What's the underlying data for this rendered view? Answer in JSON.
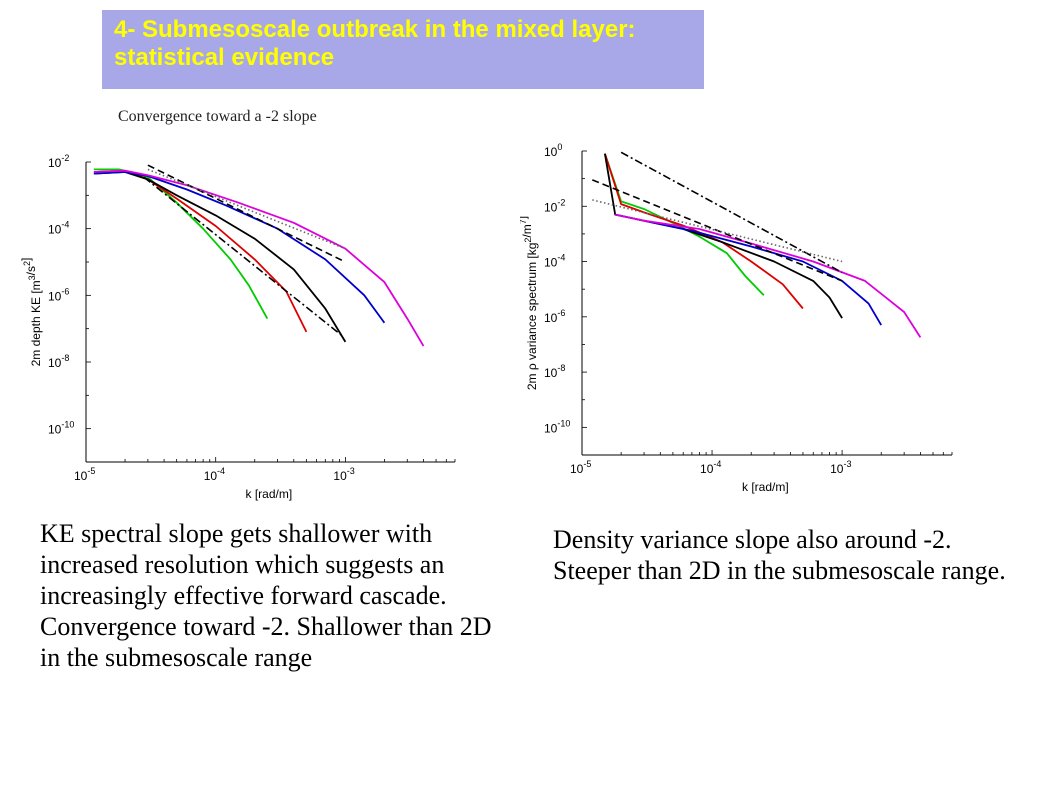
{
  "title": {
    "text": "4- Submesoscale outbreak in the mixed layer: statistical evidence",
    "background": "#a8a8e8",
    "color": "#ffff00"
  },
  "subtitle": "Convergence toward a -2 slope",
  "captions": {
    "left": "KE spectral slope gets shallower with increased resolution which suggests an increasingly effective forward cascade. Convergence toward -2. Shallower than 2D in the submesoscale range",
    "right": "Density variance slope also around -2. Steeper than 2D in the submesoscale range."
  },
  "chart_data": [
    {
      "type": "line",
      "xscale": "log",
      "yscale": "log",
      "xlabel": "k [rad/m]",
      "ylabel": "2m depth KE [m^3/s^2]",
      "xlim": [
        1e-05,
        0.007
      ],
      "ylim": [
        1e-11,
        0.01
      ],
      "x_ticks": [
        {
          "base": "10",
          "exp": "-5"
        },
        {
          "base": "10",
          "exp": "-4"
        },
        {
          "base": "10",
          "exp": "-3"
        }
      ],
      "y_ticks": [
        {
          "base": "10",
          "exp": "-2",
          "value": -2
        },
        {
          "base": "10",
          "exp": "-4",
          "value": -4
        },
        {
          "base": "10",
          "exp": "-6",
          "value": -6
        },
        {
          "base": "10",
          "exp": "-8",
          "value": -8
        },
        {
          "base": "10",
          "exp": "-10",
          "value": -10
        }
      ],
      "series": [
        {
          "color": "#00cc00",
          "style": "solid",
          "points": [
            [
              1.15e-05,
              0.006
            ],
            [
              1.8e-05,
              0.006
            ],
            [
              3e-05,
              0.0035
            ],
            [
              5e-05,
              0.0006
            ],
            [
              8e-05,
              0.0001
            ],
            [
              0.00013,
              1.2e-05
            ],
            [
              0.00018,
              2e-06
            ],
            [
              0.00025,
              2e-07
            ]
          ]
        },
        {
          "color": "#dd0000",
          "style": "solid",
          "points": [
            [
              1.15e-05,
              0.005
            ],
            [
              2e-05,
              0.0055
            ],
            [
              3e-05,
              0.003
            ],
            [
              5e-05,
              0.0008
            ],
            [
              0.0001,
              0.00012
            ],
            [
              0.0002,
              1.2e-05
            ],
            [
              0.00035,
              1.3e-06
            ],
            [
              0.0005,
              8e-08
            ]
          ]
        },
        {
          "color": "#000000",
          "style": "solid",
          "points": [
            [
              1.15e-05,
              0.0045
            ],
            [
              2e-05,
              0.005
            ],
            [
              3e-05,
              0.003
            ],
            [
              5e-05,
              0.001
            ],
            [
              0.0001,
              0.00025
            ],
            [
              0.0002,
              5e-05
            ],
            [
              0.0004,
              6e-06
            ],
            [
              0.0007,
              4e-07
            ],
            [
              0.001,
              4e-08
            ]
          ]
        },
        {
          "color": "#0000cc",
          "style": "solid",
          "points": [
            [
              1.15e-05,
              0.0045
            ],
            [
              2e-05,
              0.005
            ],
            [
              3e-05,
              0.0038
            ],
            [
              6e-05,
              0.0015
            ],
            [
              0.00012,
              0.0005
            ],
            [
              0.0003,
              0.0001
            ],
            [
              0.0007,
              1.2e-05
            ],
            [
              0.0014,
              1e-06
            ],
            [
              0.002,
              1.5e-07
            ]
          ]
        },
        {
          "color": "#dd00dd",
          "style": "solid",
          "points": [
            [
              1.15e-05,
              0.005
            ],
            [
              2e-05,
              0.0055
            ],
            [
              3e-05,
              0.004
            ],
            [
              6e-05,
              0.002
            ],
            [
              0.00015,
              0.0006
            ],
            [
              0.0004,
              0.00015
            ],
            [
              0.001,
              2.5e-05
            ],
            [
              0.002,
              2.5e-06
            ],
            [
              0.003,
              2e-07
            ],
            [
              0.004,
              3e-08
            ]
          ]
        },
        {
          "color": "#000000",
          "style": "dashed",
          "points": [
            [
              3e-05,
              0.008
            ],
            [
              0.001,
              1e-05
            ]
          ]
        },
        {
          "color": "#000000",
          "style": "dashdot",
          "points": [
            [
              2.8e-05,
              0.0035
            ],
            [
              0.00095,
              6e-08
            ]
          ]
        },
        {
          "color": "#666666",
          "style": "dotted",
          "points": [
            [
              3e-05,
              0.006
            ],
            [
              0.001,
              2.5e-05
            ]
          ]
        }
      ]
    },
    {
      "type": "line",
      "xscale": "log",
      "yscale": "log",
      "xlabel": "k [rad/m]",
      "ylabel": "2m ρ variance spectrum [kg^2/m^7]",
      "xlim": [
        1e-05,
        0.007
      ],
      "ylim": [
        1e-11,
        1
      ],
      "x_ticks": [
        {
          "base": "10",
          "exp": "-5"
        },
        {
          "base": "10",
          "exp": "-4"
        },
        {
          "base": "10",
          "exp": "-3"
        }
      ],
      "y_ticks": [
        {
          "base": "10",
          "exp": "0",
          "value": 0
        },
        {
          "base": "10",
          "exp": "-2",
          "value": -2
        },
        {
          "base": "10",
          "exp": "-4",
          "value": -4
        },
        {
          "base": "10",
          "exp": "-6",
          "value": -6
        },
        {
          "base": "10",
          "exp": "-8",
          "value": -8
        },
        {
          "base": "10",
          "exp": "-10",
          "value": -10
        }
      ],
      "series": [
        {
          "color": "#00cc00",
          "style": "solid",
          "points": [
            [
              1.5e-05,
              0.8
            ],
            [
              2e-05,
              0.015
            ],
            [
              3e-05,
              0.008
            ],
            [
              5e-05,
              0.0025
            ],
            [
              8e-05,
              0.0008
            ],
            [
              0.00013,
              0.0002
            ],
            [
              0.00018,
              3e-05
            ],
            [
              0.00025,
              6e-06
            ]
          ]
        },
        {
          "color": "#dd0000",
          "style": "solid",
          "points": [
            [
              1.5e-05,
              0.8
            ],
            [
              2e-05,
              0.012
            ],
            [
              3e-05,
              0.006
            ],
            [
              6e-05,
              0.002
            ],
            [
              0.00012,
              0.0005
            ],
            [
              0.0002,
              0.0001
            ],
            [
              0.00035,
              1.5e-05
            ],
            [
              0.0005,
              2e-06
            ]
          ]
        },
        {
          "color": "#000000",
          "style": "solid",
          "points": [
            [
              1.5e-05,
              0.8
            ],
            [
              1.8e-05,
              0.005
            ],
            [
              3e-05,
              0.003
            ],
            [
              6e-05,
              0.0015
            ],
            [
              0.00012,
              0.0005
            ],
            [
              0.0003,
              0.0001
            ],
            [
              0.0006,
              2e-05
            ],
            [
              0.0008,
              5e-06
            ],
            [
              0.001,
              9e-07
            ]
          ]
        },
        {
          "color": "#0000cc",
          "style": "solid",
          "points": [
            [
              1.8e-05,
              0.005
            ],
            [
              3e-05,
              0.003
            ],
            [
              7e-05,
              0.0013
            ],
            [
              0.0002,
              0.00035
            ],
            [
              0.0005,
              0.0001
            ],
            [
              0.001,
              2e-05
            ],
            [
              0.0016,
              3e-06
            ],
            [
              0.002,
              5e-07
            ]
          ]
        },
        {
          "color": "#dd00dd",
          "style": "solid",
          "points": [
            [
              1.8e-05,
              0.005
            ],
            [
              3e-05,
              0.003
            ],
            [
              8e-05,
              0.0015
            ],
            [
              0.0002,
              0.00045
            ],
            [
              0.0006,
              0.0001
            ],
            [
              0.0015,
              2e-05
            ],
            [
              0.003,
              1.5e-06
            ],
            [
              0.004,
              1.8e-07
            ]
          ]
        },
        {
          "color": "#000000",
          "style": "dashed",
          "points": [
            [
              1.2e-05,
              0.09
            ],
            [
              0.001,
              2e-05
            ]
          ]
        },
        {
          "color": "#000000",
          "style": "dashdot",
          "points": [
            [
              2e-05,
              0.9
            ],
            [
              0.001,
              4e-05
            ]
          ]
        },
        {
          "color": "#666666",
          "style": "dotted",
          "points": [
            [
              1.2e-05,
              0.017
            ],
            [
              0.001,
              0.0001
            ]
          ]
        }
      ]
    }
  ]
}
